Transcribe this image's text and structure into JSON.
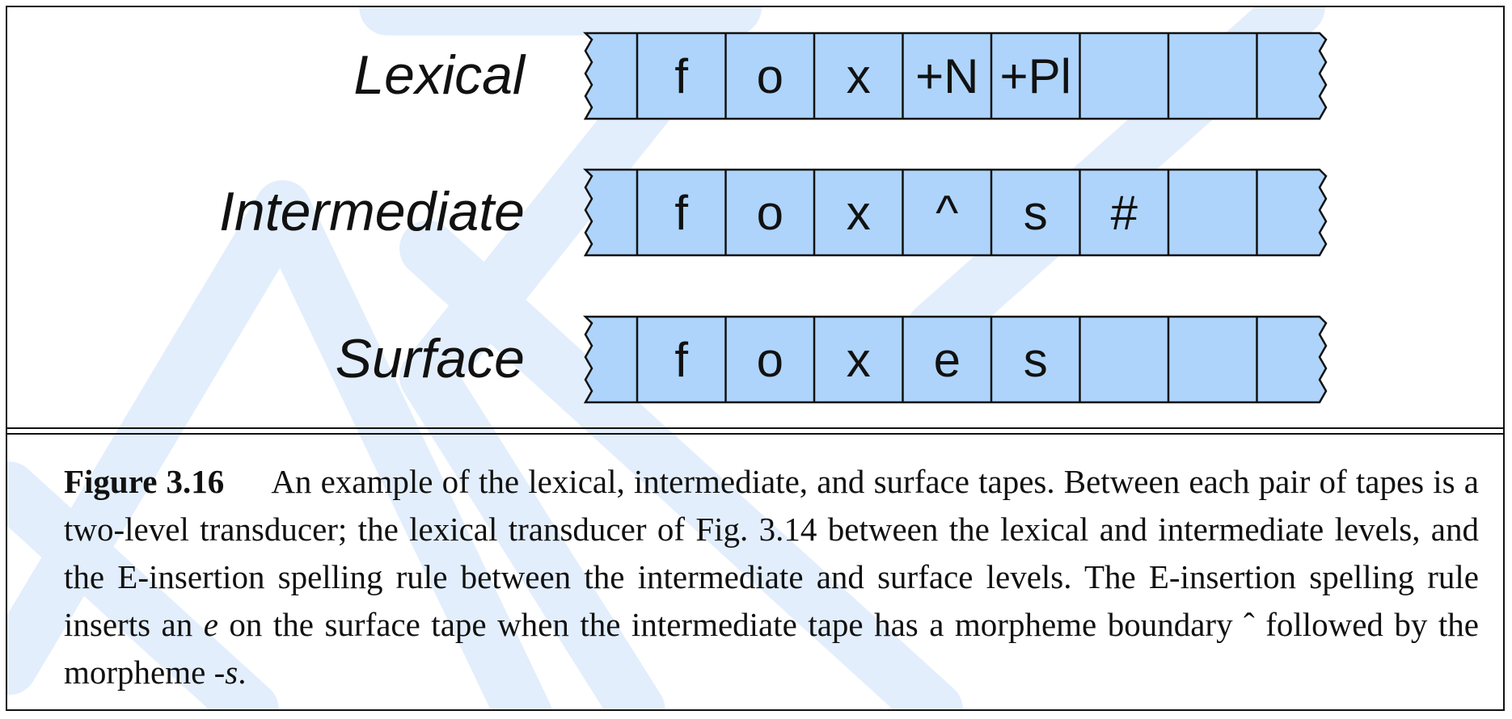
{
  "tapes": [
    {
      "label": "Lexical",
      "cells": [
        "f",
        "o",
        "x",
        "+N",
        "+Pl",
        "",
        "",
        ""
      ]
    },
    {
      "label": "Intermediate",
      "cells": [
        "f",
        "o",
        "x",
        "^",
        "s",
        "#",
        "",
        ""
      ]
    },
    {
      "label": "Surface",
      "cells": [
        "f",
        "o",
        "x",
        "e",
        "s",
        "",
        "",
        ""
      ]
    }
  ],
  "colors": {
    "tape_fill": "#aed4fb",
    "watermark": "#e3eefc",
    "stroke": "#111111"
  },
  "caption": {
    "figure_label": "Figure 3.16",
    "text_part1": "An example of the lexical, intermediate, and surface tapes. Between each pair of tapes is a two-level transducer; the lexical transducer of Fig. 3.14 between the lexical and intermediate levels, and the E-insertion spelling rule between the intermediate and surface levels. The E-insertion spelling rule inserts an ",
    "text_italic1": "e",
    "text_part2": " on the surface tape when the intermediate tape has a morpheme boundary ˆ followed by the morpheme ",
    "text_italic2": "-s",
    "text_part3": "."
  }
}
